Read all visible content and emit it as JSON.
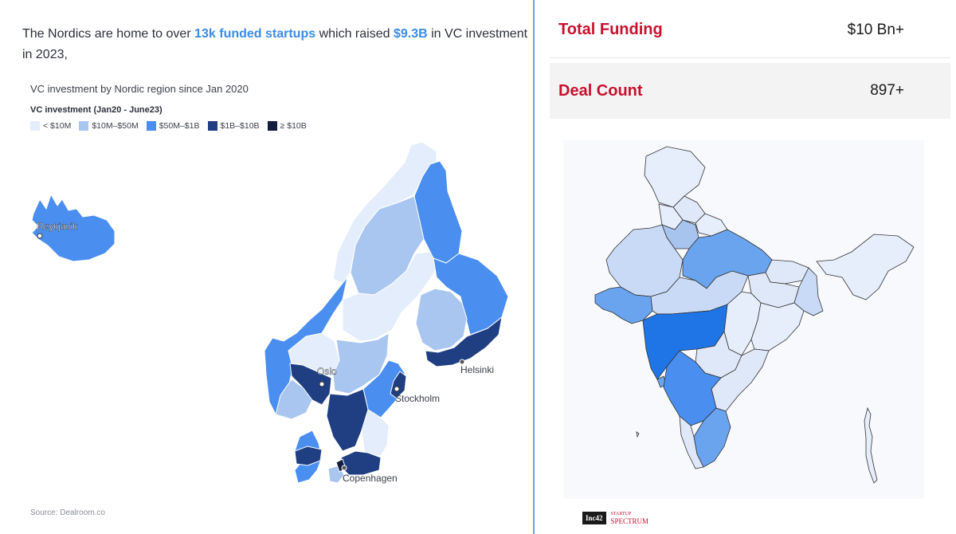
{
  "left": {
    "headline": {
      "part1": "The Nordics are home to over ",
      "highlight1": "13k funded startups",
      "part2": " which raised ",
      "highlight2": "$9.3B",
      "part3": " in VC investment in 2023,"
    },
    "map_title": "VC investment by Nordic region since Jan 2020",
    "legend_title": "VC investment (Jan20 - June23)",
    "legend": [
      {
        "label": "< $10M",
        "color": "#e3edfb"
      },
      {
        "label": "$10M–$50M",
        "color": "#a9c6f0"
      },
      {
        "label": "$50M–$1B",
        "color": "#4a8ef0"
      },
      {
        "label": "$1B–$10B",
        "color": "#1f3f82"
      },
      {
        "label": "≥ $10B",
        "color": "#131d3d"
      }
    ],
    "cities": {
      "reykjavik": "Reykjavik",
      "oslo": "Oslo",
      "stockholm": "Stockholm",
      "helsinki": "Helsinki",
      "copenhagen": "Copenhagen"
    },
    "source": "Source: Dealroom.co"
  },
  "right": {
    "stats": [
      {
        "label": "Total Funding",
        "value": "$10 Bn+"
      },
      {
        "label": "Deal Count",
        "value": "897+"
      }
    ],
    "logos": {
      "inc42": "Inc42",
      "spectrum_top": "STARTUP",
      "spectrum_bottom": "SPECTRUM"
    },
    "colors": {
      "accent_red": "#c8102e",
      "divider": "#5aa9e6"
    }
  }
}
